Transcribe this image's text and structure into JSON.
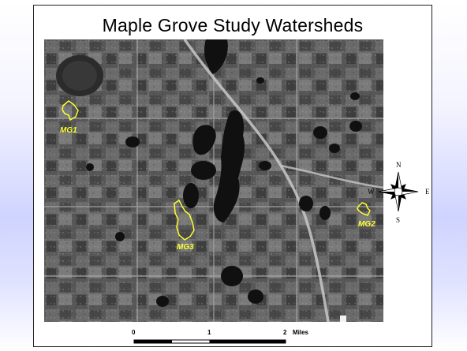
{
  "map": {
    "title": "Maple Grove Study Watersheds",
    "watersheds": [
      {
        "id": "mg1",
        "label": "MG1",
        "color": "#ffff33"
      },
      {
        "id": "mg2",
        "label": "MG2",
        "color": "#ffff33"
      },
      {
        "id": "mg3",
        "label": "MG3",
        "color": "#ffff33"
      }
    ]
  },
  "compass": {
    "north": "N",
    "south": "S",
    "east": "E",
    "west": "W"
  },
  "scale": {
    "tick_0": "0",
    "tick_1": "1",
    "tick_2": "2",
    "unit": "Miles"
  }
}
